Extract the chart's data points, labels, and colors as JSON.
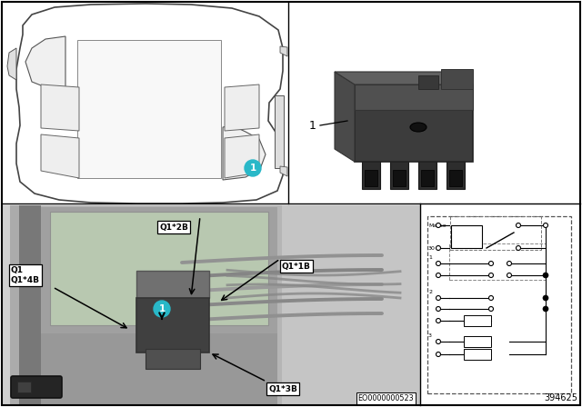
{
  "bg_color": "#ffffff",
  "cyan_color": "#29b8c8",
  "car_bg": "#ffffff",
  "photo_bg": "#c8c8c8",
  "circuit_bg": "#ffffff",
  "part_photo_bg": "#ffffff",
  "labels": {
    "Q1_Q14B": "Q1\nQ1*4B",
    "Q1_2B": "Q1*2B",
    "Q1_1B": "Q1*1B",
    "Q1_3B": "Q1*3B",
    "part_label": "1",
    "car_label": "1",
    "bottom_code": "EO0000000523",
    "ref_num": "394625"
  },
  "layout": {
    "car_panel": [
      3,
      225,
      313,
      218
    ],
    "part_panel": [
      320,
      225,
      317,
      218
    ],
    "photo_panel": [
      3,
      3,
      458,
      218
    ],
    "circuit_panel": [
      464,
      3,
      173,
      218
    ]
  }
}
